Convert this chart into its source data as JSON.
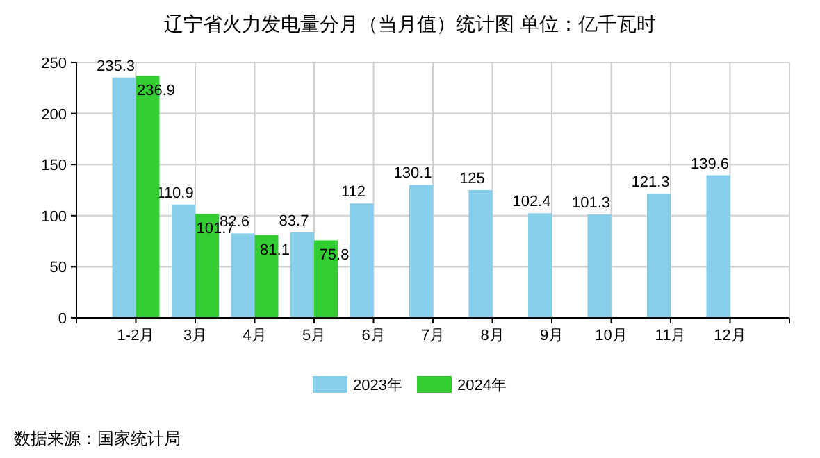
{
  "chart_data": {
    "type": "bar",
    "title": "辽宁省火力发电量分月（当月值）统计图 单位：亿千瓦时",
    "categories": [
      "1-2月",
      "3月",
      "4月",
      "5月",
      "6月",
      "7月",
      "8月",
      "9月",
      "10月",
      "11月",
      "12月"
    ],
    "series": [
      {
        "name": "2023年",
        "color": "#87ceeb",
        "values": [
          235.3,
          110.9,
          82.6,
          83.7,
          112,
          130.1,
          125,
          102.4,
          101.3,
          121.3,
          139.6
        ]
      },
      {
        "name": "2024年",
        "color": "#33cc33",
        "values": [
          236.9,
          101.7,
          81.1,
          75.8,
          null,
          null,
          null,
          null,
          null,
          null,
          null
        ]
      }
    ],
    "ylim": [
      0,
      250
    ],
    "yticks": [
      0,
      50,
      100,
      150,
      200,
      250
    ],
    "grid": true,
    "legend": "bottom",
    "data_labels": true,
    "annotations": [
      "数据来源：国家统计局"
    ]
  }
}
